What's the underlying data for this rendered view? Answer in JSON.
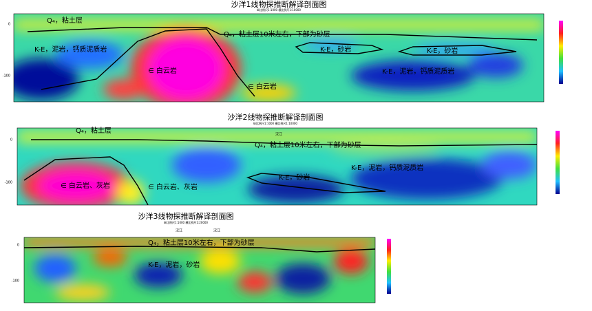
{
  "sections": [
    {
      "title": "沙洋1线物探推断解译剖面图",
      "scale": "纵比例尺1:1000 横比例尺1:10000",
      "depth_labels": [
        "0",
        "-100"
      ],
      "labels": [
        "Q₄，粘土层",
        "Q₄，粘土层10米左右，下部为砂层",
        "K-E，泥岩，钙质泥质岩",
        "K-E，砂岩",
        "K-E，砂岩",
        "∈ 白云岩",
        "∈ 白云岩",
        "K-E，泥岩，钙质泥质岩"
      ]
    },
    {
      "title": "沙洋2线物探推断解译剖面图",
      "scale": "纵比例尺1:1000 横比例尺1:10000",
      "depth_labels": [
        "0",
        "-100"
      ],
      "labels": [
        "Q₄，粘土层",
        "Q₄，粘土层10米左右，下部为砂层",
        "K-E，泥岩，钙质泥质岩",
        "K-E，砂岩",
        "∈ 白云岩、灰岩",
        "∈ 白云岩、灰岩",
        "汉江"
      ]
    },
    {
      "title": "沙洋3线物探推断解译剖面图",
      "scale": "纵比例尺1:1000 横比例尺1:20000",
      "depth_labels": [
        "0",
        "-100"
      ],
      "labels": [
        "Q₄，粘土层10米左右，下部为砂层",
        "K-E，泥岩，砂岩",
        "汉江",
        "汉江"
      ]
    }
  ]
}
